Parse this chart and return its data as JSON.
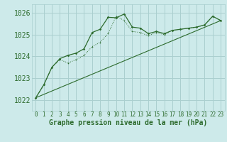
{
  "title": "Graphe pression niveau de la mer (hPa)",
  "background_color": "#cdeaea",
  "grid_color": "#aacfcf",
  "line_color": "#2d6b2d",
  "xlim": [
    -0.5,
    23.5
  ],
  "ylim": [
    1021.5,
    1026.4
  ],
  "yticks": [
    1022,
    1023,
    1024,
    1025,
    1026
  ],
  "xticks": [
    0,
    1,
    2,
    3,
    4,
    5,
    6,
    7,
    8,
    9,
    10,
    11,
    12,
    13,
    14,
    15,
    16,
    17,
    18,
    19,
    20,
    21,
    22,
    23
  ],
  "series1_x": [
    0,
    1,
    2,
    3,
    4,
    5,
    6,
    7,
    8,
    9,
    10,
    11,
    12,
    13,
    14,
    15,
    16,
    17,
    18,
    19,
    20,
    21,
    22,
    23
  ],
  "series1_y": [
    1022.1,
    1022.7,
    1023.5,
    1023.9,
    1024.05,
    1024.15,
    1024.35,
    1025.1,
    1025.25,
    1025.8,
    1025.78,
    1025.95,
    1025.35,
    1025.3,
    1025.05,
    1025.15,
    1025.05,
    1025.2,
    1025.25,
    1025.3,
    1025.35,
    1025.45,
    1025.85,
    1025.65
  ],
  "series2_x": [
    0,
    1,
    2,
    3,
    4,
    5,
    6,
    7,
    8,
    9,
    10,
    11,
    12,
    13,
    14,
    15,
    16,
    17,
    18,
    19,
    20,
    21,
    22,
    23
  ],
  "series2_y": [
    1022.1,
    1022.7,
    1023.5,
    1023.85,
    1023.7,
    1023.85,
    1024.05,
    1024.45,
    1024.65,
    1025.05,
    1025.85,
    1025.65,
    1025.15,
    1025.1,
    1024.95,
    1025.1,
    1025.0,
    1025.2,
    1025.25,
    1025.3,
    1025.35,
    1025.45,
    1025.85,
    1025.65
  ],
  "series3_x": [
    0,
    23
  ],
  "series3_y": [
    1022.1,
    1025.65
  ],
  "font_size_xlabel": 7,
  "font_size_ytick": 7,
  "font_size_xtick": 5.5
}
